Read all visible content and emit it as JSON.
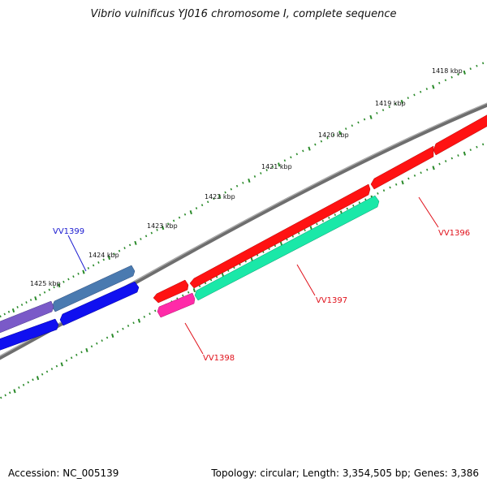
{
  "title": "Vibrio vulnificus YJ016 chromosome I, complete sequence",
  "footer": {
    "accession": "Accession: NC_005139",
    "summary": "Topology: circular; Length: 3,354,505 bp; Genes: 3,386"
  },
  "kbp_labels": [
    "1418 kbp",
    "1419 kbp",
    "1420 kbp",
    "1421 kbp",
    "1422 kbp",
    "1423 kbp",
    "1424 kbp",
    "1425 kbp"
  ],
  "gene_labels": [
    {
      "name": "VV1396",
      "color": "#e0101a"
    },
    {
      "name": "VV1397",
      "color": "#e0101a"
    },
    {
      "name": "VV1398",
      "color": "#e0101a"
    },
    {
      "name": "VV1399",
      "color": "#1a1ad0"
    }
  ],
  "colors": {
    "backbone": "#7a7a7a",
    "tick": "#2a8a2a",
    "red": "#ff1212",
    "teal": "#1ae8a8",
    "magenta": "#ff2aa8",
    "steelblue": "#4a7ab0",
    "blue": "#1010f0",
    "purple": "#7a5ac8"
  }
}
